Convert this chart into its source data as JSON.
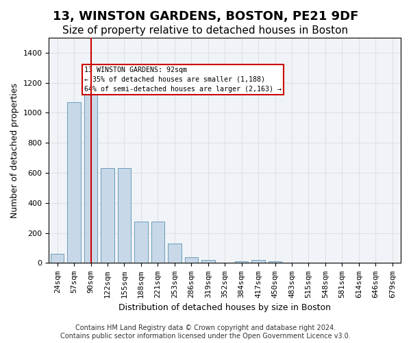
{
  "title": "13, WINSTON GARDENS, BOSTON, PE21 9DF",
  "subtitle": "Size of property relative to detached houses in Boston",
  "xlabel": "Distribution of detached houses by size in Boston",
  "ylabel": "Number of detached properties",
  "bar_color": "#c8d8e8",
  "bar_edge_color": "#6a9cb8",
  "vline_color": "#cc0000",
  "vline_x": 2,
  "annotation_text": "13 WINSTON GARDENS: 92sqm\n← 35% of detached houses are smaller (1,188)\n64% of semi-detached houses are larger (2,163) →",
  "annotation_box_color": "white",
  "annotation_box_edge": "#cc0000",
  "categories": [
    "24sqm",
    "57sqm",
    "90sqm",
    "122sqm",
    "155sqm",
    "188sqm",
    "221sqm",
    "253sqm",
    "286sqm",
    "319sqm",
    "352sqm",
    "384sqm",
    "417sqm",
    "450sqm",
    "483sqm",
    "515sqm",
    "548sqm",
    "581sqm",
    "614sqm",
    "646sqm",
    "679sqm"
  ],
  "values": [
    60,
    1070,
    1190,
    630,
    630,
    275,
    275,
    130,
    40,
    20,
    0,
    10,
    20,
    10,
    0,
    0,
    0,
    0,
    0,
    0,
    0
  ],
  "ylim": [
    0,
    1500
  ],
  "yticks": [
    0,
    200,
    400,
    600,
    800,
    1000,
    1200,
    1400
  ],
  "grid_color": "#e0e0e0",
  "background_color": "#f0f4f8",
  "footer": "Contains HM Land Registry data © Crown copyright and database right 2024.\nContains public sector information licensed under the Open Government Licence v3.0.",
  "title_fontsize": 13,
  "subtitle_fontsize": 11,
  "xlabel_fontsize": 9,
  "ylabel_fontsize": 9,
  "tick_fontsize": 8,
  "footer_fontsize": 7
}
